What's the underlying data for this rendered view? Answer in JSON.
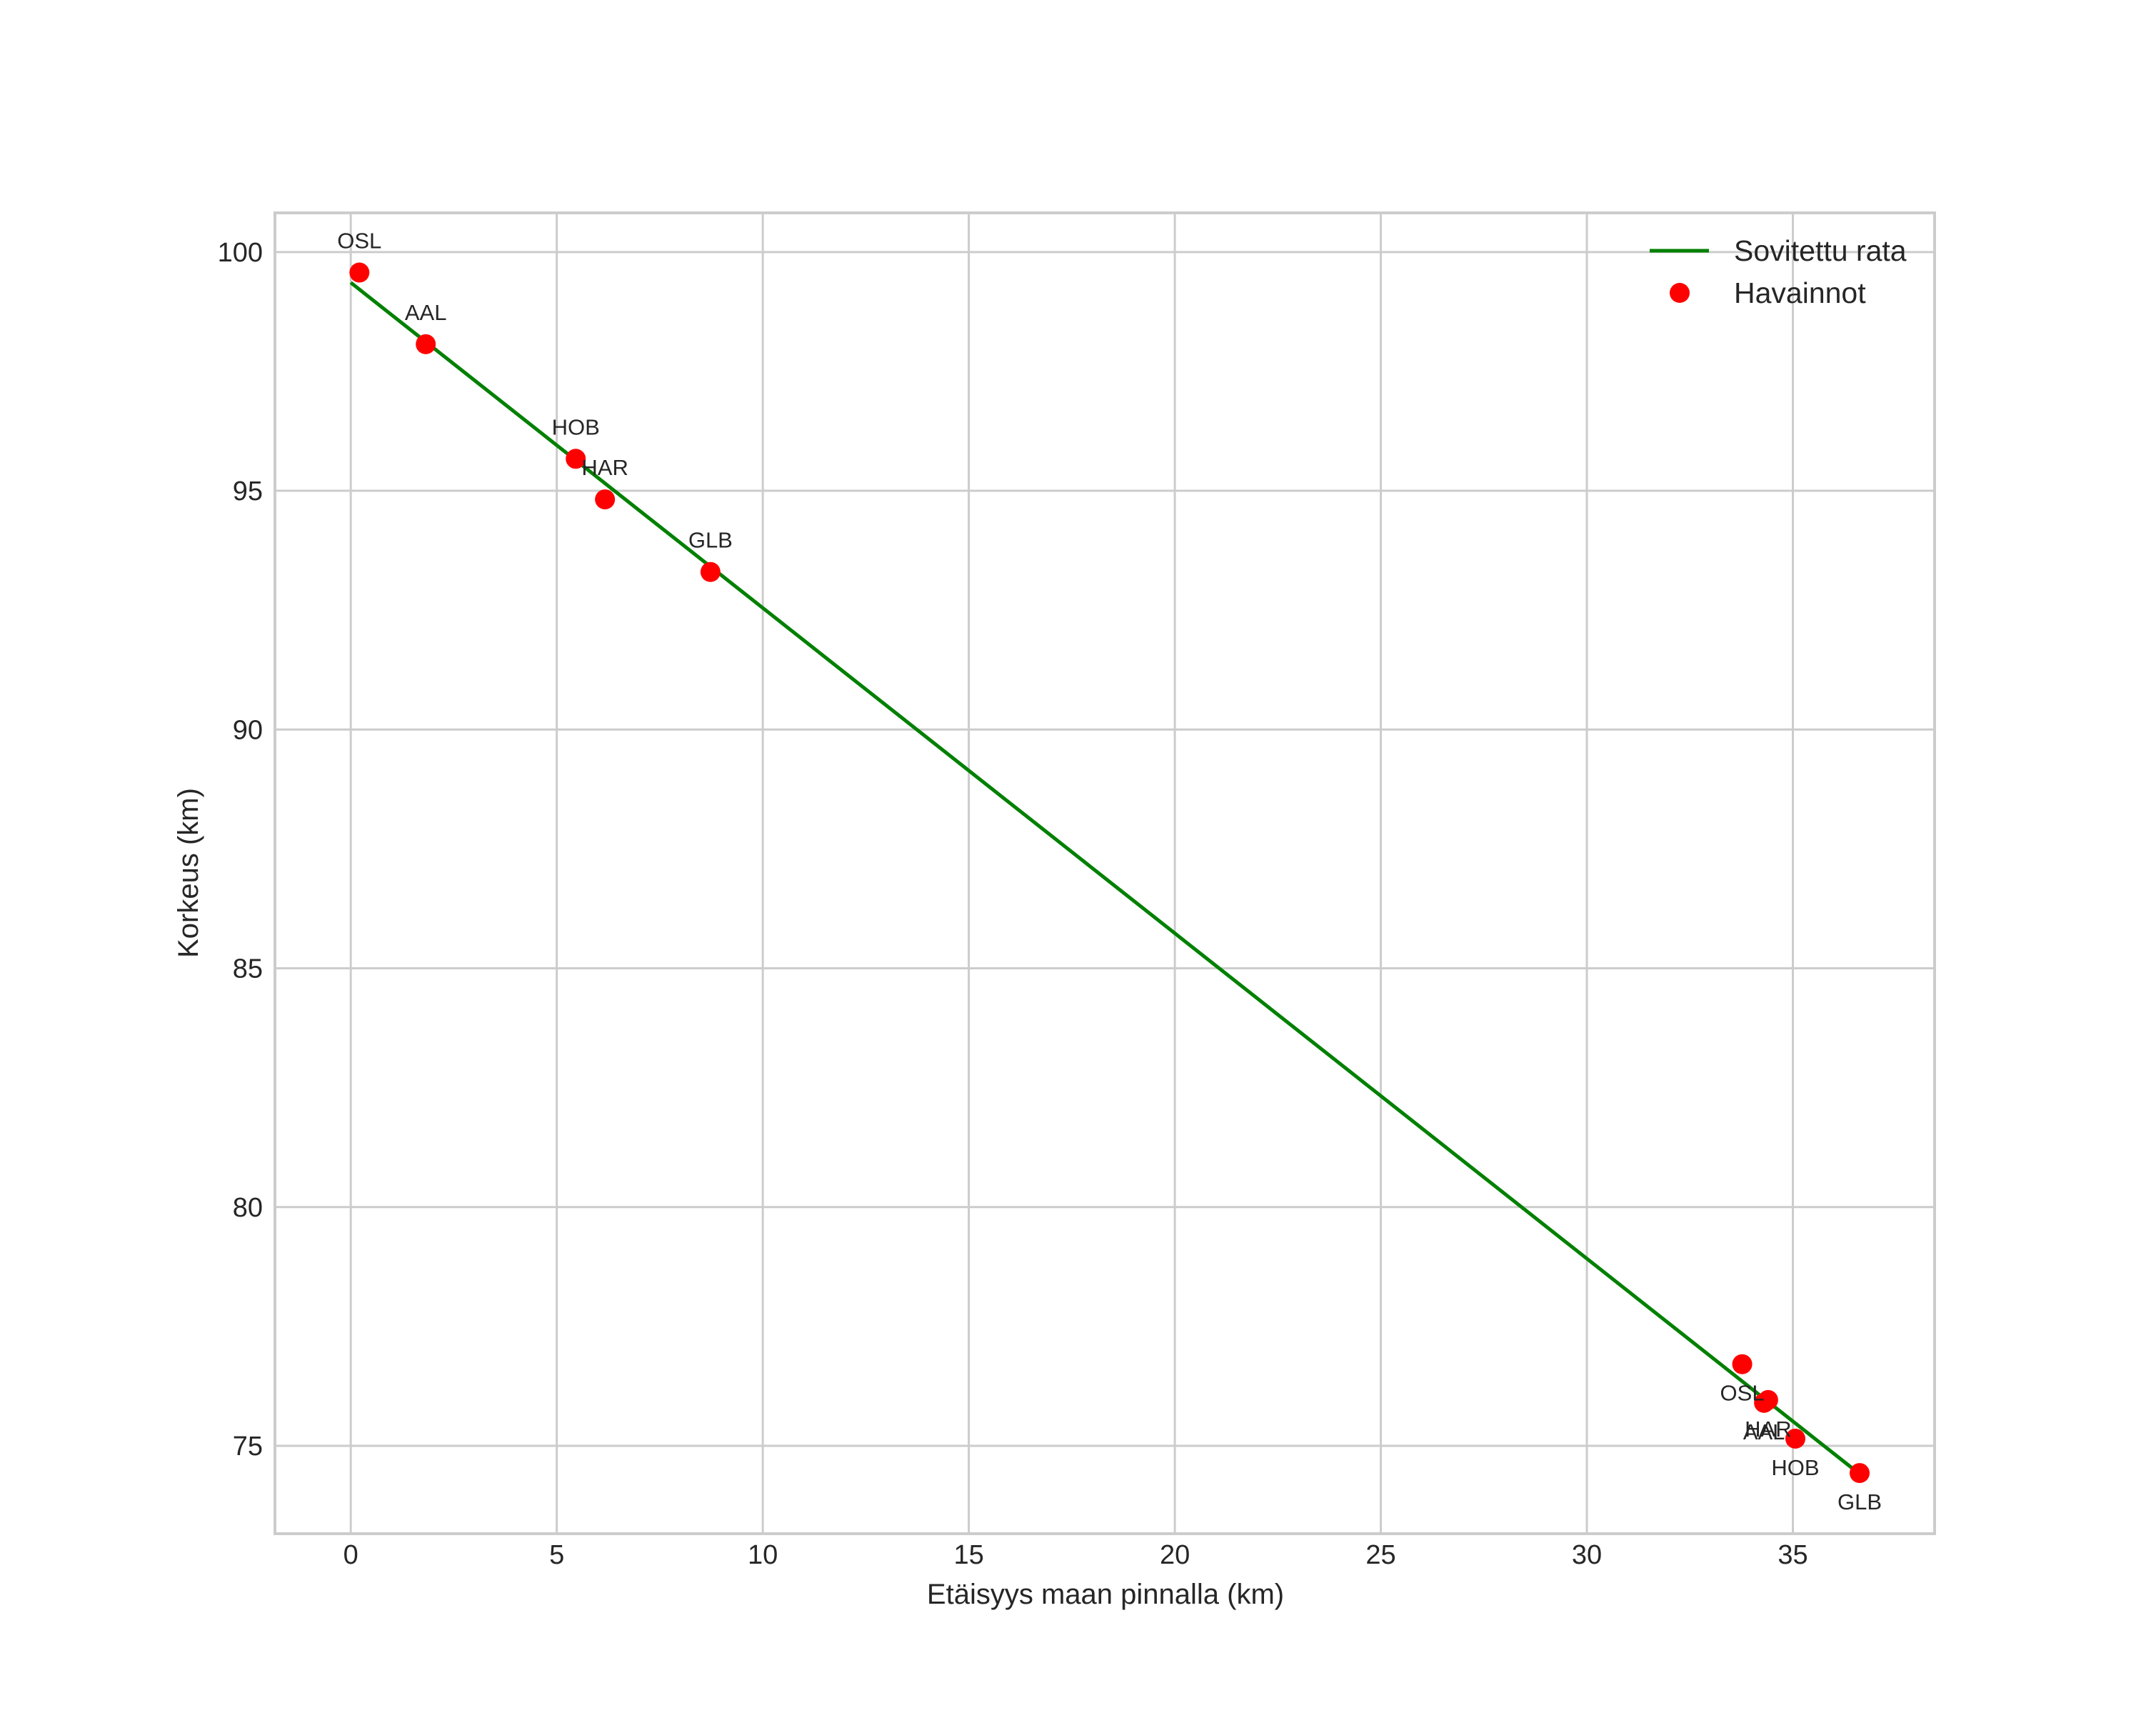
{
  "chart_data": {
    "type": "scatter",
    "title": "",
    "xlabel": "Etäisyys maan pinnalla (km)",
    "ylabel": "Korkeus (km)",
    "xlim": [
      -1.84,
      38.44
    ],
    "ylim": [
      73.16,
      100.82
    ],
    "xticks": [
      0,
      5,
      10,
      15,
      20,
      25,
      30,
      35
    ],
    "yticks": [
      75,
      80,
      85,
      90,
      95,
      100
    ],
    "grid": true,
    "legend_position": "upper right",
    "legend": [
      {
        "label": "Sovitettu rata",
        "type": "line",
        "color": "#008000"
      },
      {
        "label": "Havainnot",
        "type": "marker",
        "color": "#ff0000"
      }
    ],
    "series": [
      {
        "name": "Sovitettu rata",
        "type": "line",
        "color": "#008000",
        "x": [
          0.0,
          36.43
        ],
        "y": [
          99.36,
          74.54
        ]
      },
      {
        "name": "Havainnot",
        "type": "scatter",
        "color": "#ff0000",
        "points": [
          {
            "label": "OSL",
            "x": 0.21,
            "y": 99.57,
            "label_pos": "above"
          },
          {
            "label": "AAL",
            "x": 1.82,
            "y": 98.07,
            "label_pos": "above"
          },
          {
            "label": "HOB",
            "x": 5.46,
            "y": 95.67,
            "label_pos": "above"
          },
          {
            "label": "HAR",
            "x": 6.17,
            "y": 94.82,
            "label_pos": "above"
          },
          {
            "label": "GLB",
            "x": 8.73,
            "y": 93.3,
            "label_pos": "above"
          },
          {
            "label": "OSL",
            "x": 33.77,
            "y": 76.71,
            "label_pos": "below"
          },
          {
            "label": "AAL",
            "x": 34.3,
            "y": 75.9,
            "label_pos": "below"
          },
          {
            "label": "HAR",
            "x": 34.4,
            "y": 75.96,
            "label_pos": "below"
          },
          {
            "label": "HOB",
            "x": 35.06,
            "y": 75.15,
            "label_pos": "below"
          },
          {
            "label": "GLB",
            "x": 36.62,
            "y": 74.43,
            "label_pos": "below"
          }
        ]
      }
    ]
  }
}
